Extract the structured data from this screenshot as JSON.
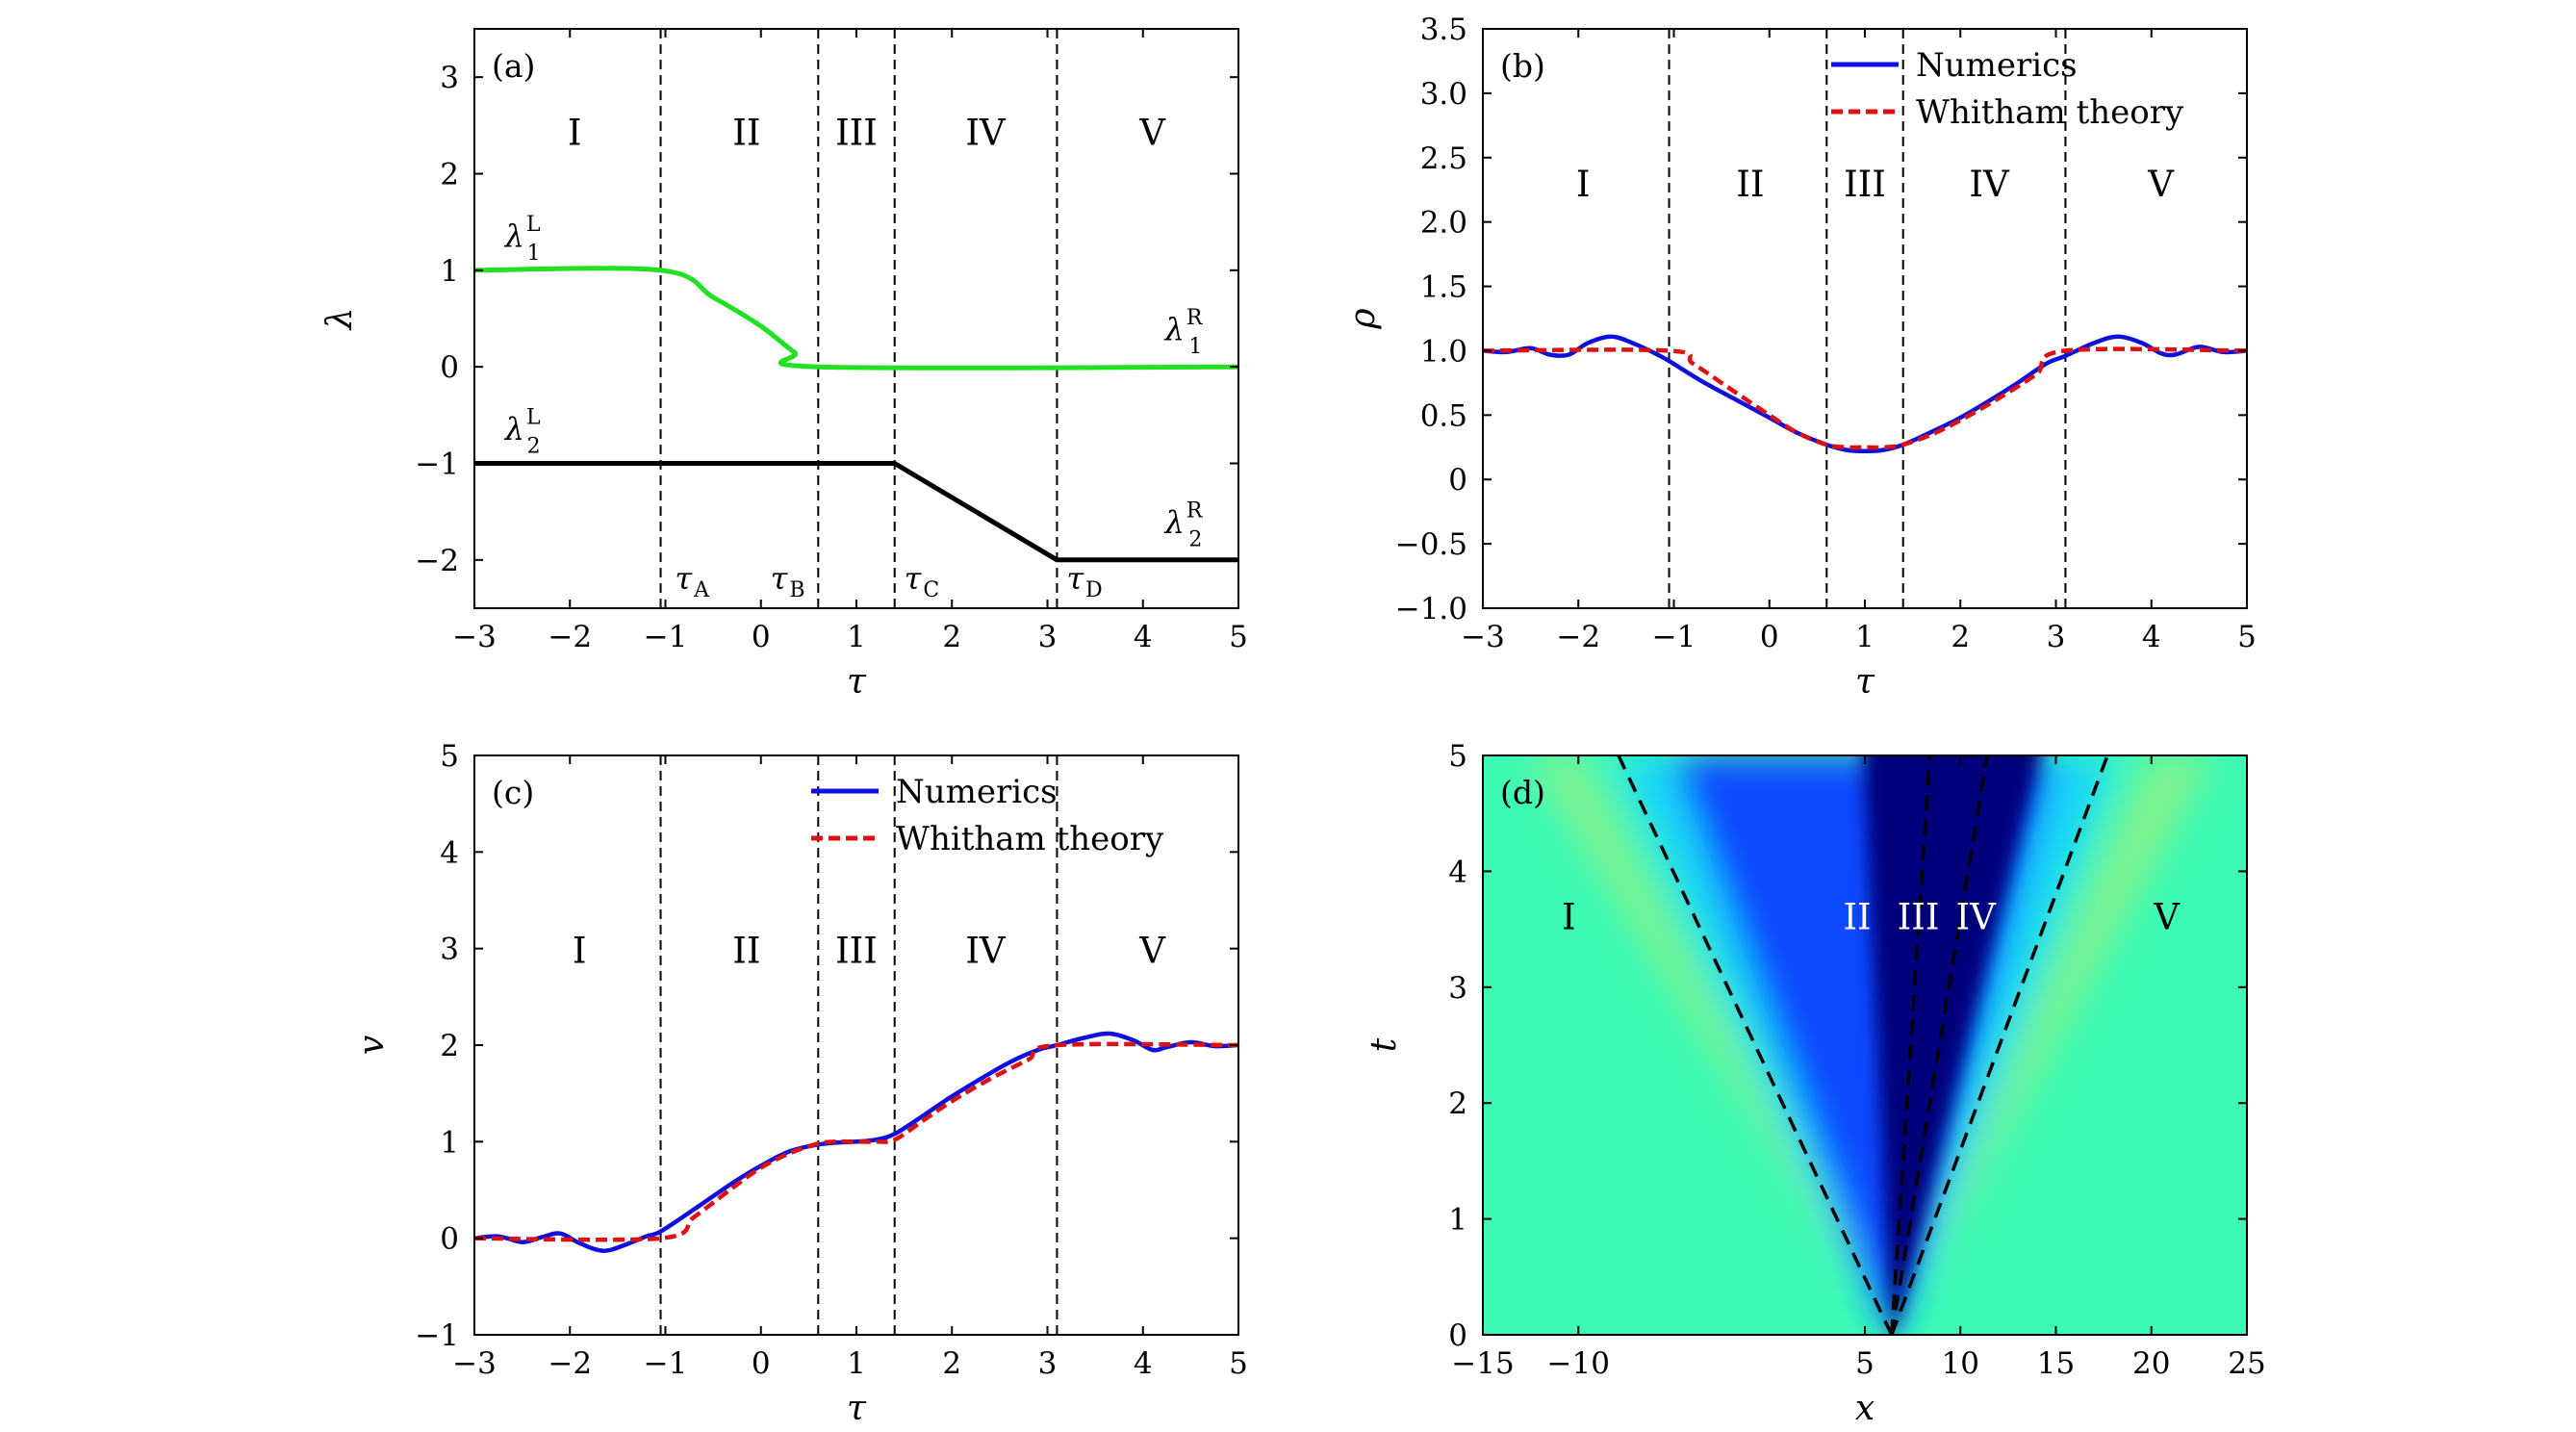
{
  "chart_data": [
    {
      "panel": "(a)",
      "type": "line",
      "xlabel": "τ",
      "ylabel": "λ",
      "xlim": [
        -3,
        5
      ],
      "ylim": [
        -2.5,
        3.5
      ],
      "xticks": [
        -3,
        -2,
        -1,
        0,
        1,
        2,
        3,
        4,
        5
      ],
      "yticks": [
        -2,
        -1,
        0,
        1,
        2,
        3
      ],
      "boundaries": [
        -1.05,
        0.6,
        1.4,
        3.1
      ],
      "regions": [
        {
          "label": "I",
          "x": -1.95
        },
        {
          "label": "II",
          "x": -0.15
        },
        {
          "label": "III",
          "x": 1.0
        },
        {
          "label": "IV",
          "x": 2.35
        },
        {
          "label": "V",
          "x": 4.1
        }
      ],
      "regions_y": 2.3,
      "series": [
        {
          "color": "#22e022",
          "x": [
            -3,
            -1.05,
            -0.5,
            0.0,
            0.35,
            0.6,
            5
          ],
          "y": [
            1,
            1,
            0.72,
            0.42,
            0.15,
            0,
            0
          ]
        },
        {
          "color": "#000000",
          "x": [
            -3,
            1.4,
            3.1,
            5
          ],
          "y": [
            -1,
            -1,
            -2,
            -2
          ]
        }
      ],
      "annotations": [
        {
          "base": "λ",
          "sub": "1",
          "sup": "L",
          "x": -2.68,
          "y": 1.25
        },
        {
          "base": "λ",
          "sub": "1",
          "sup": "R",
          "x": 4.23,
          "y": 0.28
        },
        {
          "base": "λ",
          "sub": "2",
          "sup": "L",
          "x": -2.68,
          "y": -0.75
        },
        {
          "base": "λ",
          "sub": "2",
          "sup": "R",
          "x": 4.23,
          "y": -1.72
        },
        {
          "base": "τ",
          "sub": "A",
          "sup": "",
          "x": -0.9,
          "y": -2.3
        },
        {
          "base": "τ",
          "sub": "B",
          "sup": "",
          "x": 0.1,
          "y": -2.3
        },
        {
          "base": "τ",
          "sub": "C",
          "sup": "",
          "x": 1.5,
          "y": -2.3
        },
        {
          "base": "τ",
          "sub": "D",
          "sup": "",
          "x": 3.2,
          "y": -2.3
        }
      ]
    },
    {
      "panel": "(b)",
      "type": "line",
      "xlabel": "τ",
      "ylabel": "ρ",
      "xlim": [
        -3,
        5
      ],
      "ylim": [
        -1.0,
        3.5
      ],
      "xticks": [
        -3,
        -2,
        -1,
        0,
        1,
        2,
        3,
        4,
        5
      ],
      "yticks": [
        "−1.0",
        "−0.5",
        "0",
        "0.5",
        "1.0",
        "1.5",
        "2.0",
        "2.5",
        "3.0",
        "3.5"
      ],
      "ytick_values": [
        -1.0,
        -0.5,
        0,
        0.5,
        1.0,
        1.5,
        2.0,
        2.5,
        3.0,
        3.5
      ],
      "boundaries": [
        -1.05,
        0.6,
        1.4,
        3.1
      ],
      "regions": [
        {
          "label": "I",
          "x": -1.95
        },
        {
          "label": "II",
          "x": -0.2
        },
        {
          "label": "III",
          "x": 1.0
        },
        {
          "label": "IV",
          "x": 2.3
        },
        {
          "label": "V",
          "x": 4.1
        }
      ],
      "regions_y": 2.2,
      "legend": [
        "Numerics",
        "Whitham theory"
      ],
      "series": [
        {
          "name": "Numerics",
          "color": "#1010dd",
          "dash": false,
          "x": [
            -3,
            -2.75,
            -2.5,
            -2.3,
            -2.1,
            -1.9,
            -1.65,
            -1.4,
            -1.2,
            -1.05,
            -0.7,
            -0.3,
            0.0,
            0.3,
            0.6,
            0.8,
            1.0,
            1.2,
            1.4,
            1.7,
            2.0,
            2.3,
            2.6,
            2.9,
            3.1,
            3.4,
            3.65,
            3.9,
            4.1,
            4.25,
            4.5,
            4.75,
            5
          ],
          "y": [
            1.0,
            0.99,
            1.02,
            0.97,
            0.97,
            1.06,
            1.11,
            1.05,
            0.98,
            0.92,
            0.76,
            0.6,
            0.48,
            0.36,
            0.27,
            0.23,
            0.22,
            0.23,
            0.27,
            0.37,
            0.48,
            0.61,
            0.75,
            0.9,
            0.96,
            1.06,
            1.11,
            1.06,
            0.98,
            0.97,
            1.03,
            0.99,
            1.0
          ]
        },
        {
          "name": "Whitham theory",
          "color": "#dd1111",
          "dash": true,
          "x": [
            -3,
            -1.05,
            -0.8,
            -0.4,
            0.0,
            0.3,
            0.6,
            0.8,
            1.0,
            1.2,
            1.4,
            1.7,
            2.0,
            2.4,
            2.8,
            3.1,
            5
          ],
          "y": [
            1.0,
            1.0,
            0.9,
            0.7,
            0.5,
            0.36,
            0.27,
            0.25,
            0.25,
            0.25,
            0.27,
            0.35,
            0.46,
            0.63,
            0.82,
            1.0,
            1.0
          ]
        }
      ]
    },
    {
      "panel": "(c)",
      "type": "line",
      "xlabel": "v",
      "xlabel_axis": "τ",
      "ylabel": "v",
      "xlim": [
        -3,
        5
      ],
      "ylim": [
        -1,
        5
      ],
      "xticks": [
        -3,
        -2,
        -1,
        0,
        1,
        2,
        3,
        4,
        5
      ],
      "yticks": [
        -1,
        0,
        1,
        2,
        3,
        4,
        5
      ],
      "boundaries": [
        -1.05,
        0.6,
        1.4,
        3.1
      ],
      "regions": [
        {
          "label": "I",
          "x": -1.9
        },
        {
          "label": "II",
          "x": -0.15
        },
        {
          "label": "III",
          "x": 1.0
        },
        {
          "label": "IV",
          "x": 2.35
        },
        {
          "label": "V",
          "x": 4.1
        }
      ],
      "regions_y": 2.85,
      "legend": [
        "Numerics",
        "Whitham theory"
      ],
      "series": [
        {
          "name": "Numerics",
          "color": "#1010dd",
          "dash": false,
          "x": [
            -3,
            -2.75,
            -2.5,
            -2.3,
            -2.1,
            -1.9,
            -1.65,
            -1.4,
            -1.2,
            -1.05,
            -0.7,
            -0.3,
            0.0,
            0.3,
            0.6,
            0.8,
            1.0,
            1.2,
            1.4,
            1.7,
            2.0,
            2.3,
            2.6,
            2.9,
            3.1,
            3.4,
            3.65,
            3.9,
            4.1,
            4.25,
            4.5,
            4.75,
            5
          ],
          "y": [
            0.0,
            0.02,
            -0.04,
            0.01,
            0.05,
            -0.05,
            -0.13,
            -0.06,
            0.02,
            0.07,
            0.3,
            0.57,
            0.75,
            0.9,
            0.97,
            0.99,
            1.0,
            1.02,
            1.08,
            1.27,
            1.47,
            1.65,
            1.82,
            1.95,
            2.0,
            2.08,
            2.12,
            2.05,
            1.95,
            1.98,
            2.03,
            1.99,
            2.0
          ]
        },
        {
          "name": "Whitham theory",
          "color": "#dd1111",
          "dash": true,
          "x": [
            -3,
            -1.05,
            -0.7,
            -0.3,
            0.0,
            0.3,
            0.6,
            0.8,
            1.0,
            1.2,
            1.4,
            1.7,
            2.0,
            2.4,
            2.8,
            3.1,
            5
          ],
          "y": [
            0.0,
            0.0,
            0.22,
            0.52,
            0.73,
            0.88,
            0.98,
            1.0,
            1.0,
            1.0,
            1.02,
            1.22,
            1.42,
            1.65,
            1.85,
            2.0,
            2.0
          ]
        }
      ]
    },
    {
      "panel": "(d)",
      "type": "heatmap",
      "xlabel": "x",
      "ylabel": "t",
      "xlim": [
        -15,
        25
      ],
      "ylim": [
        0,
        5
      ],
      "xticks": [
        "−15",
        "−10",
        "5",
        "10",
        "15",
        "20",
        "25"
      ],
      "xtick_values": [
        -15,
        -10,
        5,
        10,
        15,
        20,
        25
      ],
      "yticks": [
        0,
        1,
        2,
        3,
        4,
        5
      ],
      "origin_x": 6.4,
      "boundary_tops_x": [
        -7.9,
        8.4,
        11.4,
        17.7
      ],
      "regions": [
        {
          "label": "I",
          "x": -10.5
        },
        {
          "label": "II",
          "x": 4.6
        },
        {
          "label": "III",
          "x": 7.8
        },
        {
          "label": "IV",
          "x": 10.8
        },
        {
          "label": "V",
          "x": 20.8
        }
      ],
      "regions_y": 3.5,
      "colors": {
        "background": "#3dfab4",
        "ridge": "#86f08a",
        "cyan": "#18d6f8",
        "blue": "#0a48ff",
        "deep": "#00007a"
      }
    }
  ]
}
